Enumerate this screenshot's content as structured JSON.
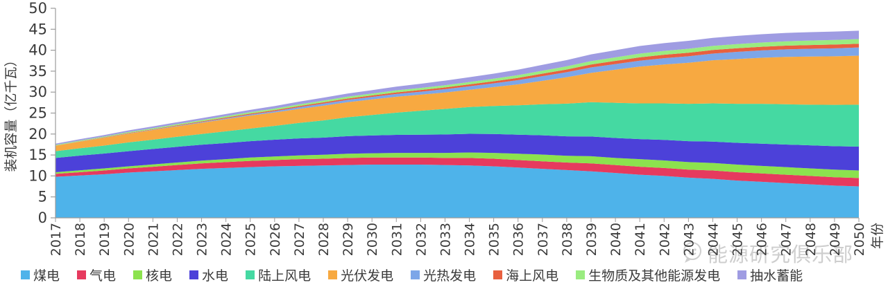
{
  "figure": {
    "watermark": {
      "text": "能源研究俱乐部",
      "logo": "speech-bubble-logo"
    }
  },
  "chart_data": {
    "type": "area",
    "stacked": true,
    "title": "",
    "xlabel": "年份",
    "ylabel": "装机容量（亿千瓦）",
    "ylim": [
      0,
      50
    ],
    "ytick_step": 5,
    "yticks": [
      0,
      5,
      10,
      15,
      20,
      25,
      30,
      35,
      40,
      45,
      50
    ],
    "grid": false,
    "legend_position": "bottom",
    "x": [
      2017,
      2018,
      2019,
      2020,
      2021,
      2022,
      2023,
      2024,
      2025,
      2026,
      2027,
      2028,
      2029,
      2030,
      2031,
      2032,
      2033,
      2034,
      2035,
      2036,
      2037,
      2038,
      2039,
      2040,
      2041,
      2042,
      2043,
      2044,
      2045,
      2046,
      2047,
      2048,
      2049,
      2050
    ],
    "series": [
      {
        "key": "coal",
        "name": "煤电",
        "color": "#4eb3ea",
        "values": [
          9.8,
          10.1,
          10.4,
          10.8,
          11.1,
          11.4,
          11.7,
          11.9,
          12.1,
          12.3,
          12.4,
          12.5,
          12.6,
          12.7,
          12.7,
          12.7,
          12.6,
          12.5,
          12.3,
          12.0,
          11.7,
          11.4,
          11.1,
          10.7,
          10.3,
          10.0,
          9.6,
          9.3,
          8.9,
          8.6,
          8.3,
          8.0,
          7.7,
          7.5
        ]
      },
      {
        "key": "gas",
        "name": "气电",
        "color": "#e63a5e",
        "values": [
          0.7,
          0.8,
          0.9,
          1.0,
          1.1,
          1.2,
          1.3,
          1.4,
          1.5,
          1.5,
          1.6,
          1.6,
          1.7,
          1.7,
          1.7,
          1.7,
          1.7,
          1.8,
          1.8,
          1.8,
          1.8,
          1.8,
          1.9,
          1.9,
          1.9,
          1.9,
          1.9,
          2.0,
          2.0,
          2.0,
          2.0,
          2.0,
          2.0,
          2.0
        ]
      },
      {
        "key": "nuclear",
        "name": "核电",
        "color": "#8ce24e",
        "values": [
          0.4,
          0.45,
          0.5,
          0.5,
          0.55,
          0.6,
          0.65,
          0.7,
          0.8,
          0.85,
          0.9,
          0.95,
          1.0,
          1.0,
          1.1,
          1.1,
          1.2,
          1.3,
          1.4,
          1.5,
          1.6,
          1.6,
          1.7,
          1.7,
          1.8,
          1.8,
          1.8,
          1.8,
          1.8,
          1.8,
          1.8,
          1.8,
          1.8,
          1.8
        ]
      },
      {
        "key": "hydro",
        "name": "水电",
        "color": "#4c41d9",
        "values": [
          3.4,
          3.5,
          3.55,
          3.6,
          3.7,
          3.75,
          3.8,
          3.85,
          3.9,
          4.0,
          4.05,
          4.1,
          4.2,
          4.25,
          4.3,
          4.35,
          4.4,
          4.45,
          4.5,
          4.55,
          4.6,
          4.65,
          4.7,
          4.75,
          4.8,
          4.9,
          5.0,
          5.1,
          5.2,
          5.3,
          5.4,
          5.5,
          5.6,
          5.7
        ]
      },
      {
        "key": "onshore-wind",
        "name": "陆上风电",
        "color": "#45d9a2",
        "values": [
          1.6,
          1.75,
          1.9,
          2.1,
          2.2,
          2.4,
          2.55,
          2.8,
          3.0,
          3.3,
          3.7,
          4.1,
          4.5,
          4.9,
          5.3,
          5.7,
          6.1,
          6.4,
          6.7,
          7.0,
          7.4,
          7.8,
          8.2,
          8.4,
          8.5,
          8.7,
          8.9,
          9.1,
          9.3,
          9.5,
          9.6,
          9.7,
          9.85,
          10.0
        ]
      },
      {
        "key": "solar-pv",
        "name": "光伏发电",
        "color": "#f7a941",
        "values": [
          1.3,
          1.6,
          1.85,
          2.1,
          2.3,
          2.5,
          2.7,
          2.9,
          3.1,
          3.2,
          3.35,
          3.5,
          3.6,
          3.7,
          3.8,
          3.85,
          3.9,
          4.1,
          4.5,
          5.0,
          5.6,
          6.3,
          7.0,
          7.9,
          8.8,
          9.3,
          9.8,
          10.3,
          10.7,
          11.0,
          11.3,
          11.5,
          11.6,
          11.7
        ]
      },
      {
        "key": "csp",
        "name": "光热发电",
        "color": "#7da6e8",
        "values": [
          0.02,
          0.03,
          0.05,
          0.06,
          0.08,
          0.1,
          0.15,
          0.2,
          0.25,
          0.3,
          0.4,
          0.5,
          0.55,
          0.6,
          0.65,
          0.7,
          0.8,
          0.85,
          0.9,
          1.0,
          1.1,
          1.2,
          1.3,
          1.35,
          1.4,
          1.5,
          1.55,
          1.6,
          1.7,
          1.75,
          1.8,
          1.85,
          1.9,
          1.95
        ]
      },
      {
        "key": "offshore-wind",
        "name": "海上风电",
        "color": "#e8603f",
        "values": [
          0.03,
          0.05,
          0.07,
          0.1,
          0.12,
          0.15,
          0.17,
          0.2,
          0.22,
          0.25,
          0.27,
          0.3,
          0.32,
          0.35,
          0.37,
          0.4,
          0.42,
          0.45,
          0.5,
          0.55,
          0.6,
          0.65,
          0.7,
          0.75,
          0.8,
          0.82,
          0.84,
          0.85,
          0.86,
          0.87,
          0.88,
          0.89,
          0.9,
          0.9
        ]
      },
      {
        "key": "biomass",
        "name": "生物质及其他能源发电",
        "color": "#9aec80",
        "values": [
          0.15,
          0.17,
          0.2,
          0.22,
          0.25,
          0.27,
          0.3,
          0.32,
          0.35,
          0.37,
          0.4,
          0.42,
          0.45,
          0.47,
          0.5,
          0.5,
          0.52,
          0.55,
          0.6,
          0.65,
          0.7,
          0.75,
          0.8,
          0.85,
          0.9,
          0.92,
          0.95,
          0.97,
          1.0,
          1.02,
          1.05,
          1.07,
          1.1,
          1.1
        ]
      },
      {
        "key": "pumped-storage",
        "name": "抽水蓄能",
        "color": "#9f9ce2",
        "values": [
          0.3,
          0.32,
          0.35,
          0.4,
          0.42,
          0.45,
          0.47,
          0.5,
          0.55,
          0.6,
          0.65,
          0.7,
          0.75,
          0.8,
          0.9,
          1.0,
          1.1,
          1.15,
          1.2,
          1.3,
          1.4,
          1.5,
          1.6,
          1.7,
          1.8,
          1.85,
          1.9,
          1.92,
          1.95,
          1.97,
          2.0,
          2.0,
          2.0,
          2.0
        ]
      }
    ]
  }
}
